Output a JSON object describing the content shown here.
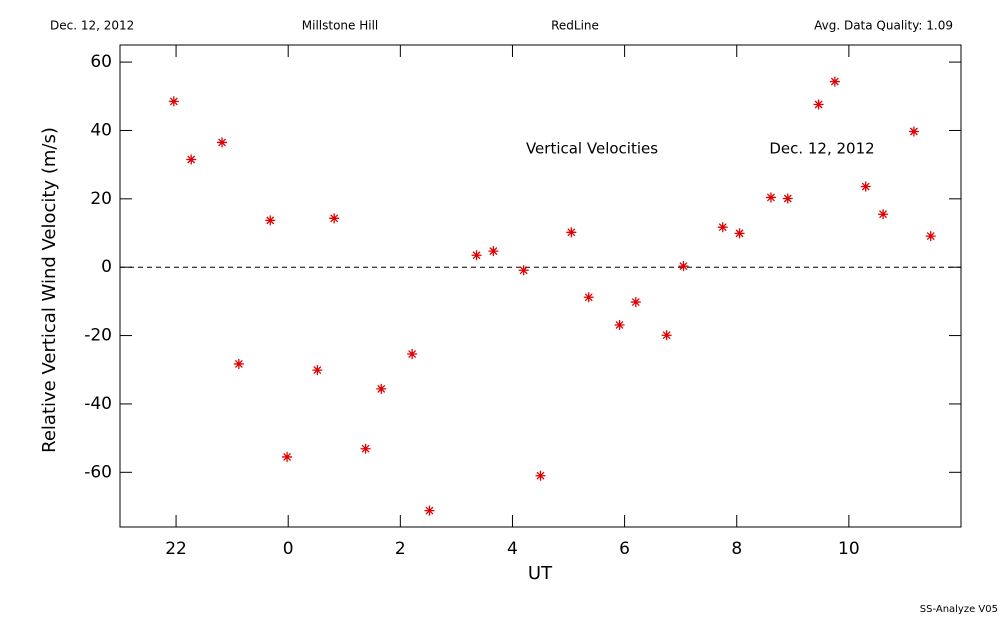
{
  "header": {
    "date": "Dec. 12, 2012",
    "site": "Millstone Hill",
    "instrument": "RedLine",
    "quality": "Avg. Data Quality: 1.09"
  },
  "footer": "SS-Analyze V05",
  "chart_data": {
    "type": "scatter",
    "xlabel": "UT",
    "ylabel": "Relative Vertical Wind Velocity (m/s)",
    "annotations": [
      "Vertical Velocities",
      "Dec. 12, 2012"
    ],
    "xlim": [
      -3,
      12
    ],
    "ylim": [
      -76,
      65
    ],
    "xticks": [
      {
        "value": -2,
        "label": "22"
      },
      0,
      2,
      4,
      6,
      8,
      10
    ],
    "yticks": [
      -60,
      -40,
      -20,
      0,
      20,
      40,
      60
    ],
    "reference_line": 0,
    "series": [
      {
        "color": "#e00000",
        "x": [
          -2.04,
          -1.73,
          -1.18,
          -0.88,
          -0.32,
          -0.02,
          0.52,
          0.82,
          1.38,
          1.66,
          2.21,
          2.52,
          3.36,
          3.66,
          4.2,
          4.5,
          5.05,
          5.36,
          5.91,
          6.2,
          6.75,
          7.05,
          7.75,
          8.05,
          8.61,
          8.91,
          9.46,
          9.75,
          10.3,
          10.61,
          11.16,
          11.46
        ],
        "values": [
          48.5,
          31.5,
          36.5,
          -28.3,
          13.7,
          -55.5,
          -30.1,
          14.3,
          -53.1,
          -35.6,
          -25.4,
          -71.2,
          3.5,
          4.7,
          -0.9,
          -61.0,
          10.2,
          -8.8,
          -16.9,
          -10.2,
          -19.9,
          0.3,
          11.7,
          9.9,
          20.4,
          20.1,
          47.6,
          54.3,
          23.6,
          15.5,
          39.7,
          9.1
        ]
      }
    ]
  }
}
